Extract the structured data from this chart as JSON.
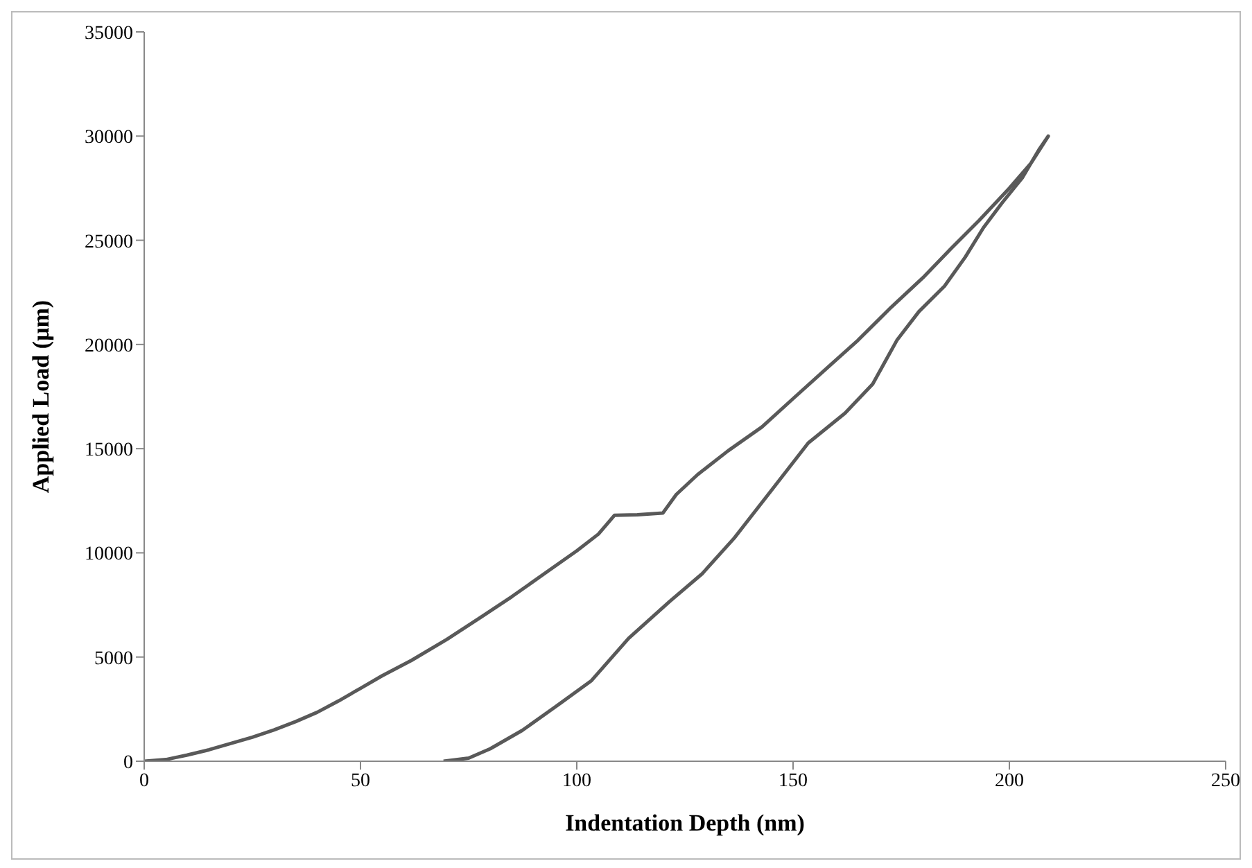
{
  "chart_data": {
    "type": "line",
    "xlabel": "Indentation Depth (nm)",
    "ylabel": "Applied Load (µm)",
    "xlim": [
      0,
      250
    ],
    "xticks": [
      0,
      50,
      100,
      150,
      200,
      250
    ],
    "ylim": [
      0,
      35000
    ],
    "yticks": [
      0,
      5000,
      10000,
      15000,
      20000,
      25000,
      30000,
      35000
    ],
    "grid": false,
    "legend": false,
    "marker": "none",
    "line_style": "solid",
    "series": [
      {
        "color": "#595959",
        "x": [
          0,
          5,
          10,
          15,
          20,
          25,
          30,
          35,
          40,
          45,
          50,
          55,
          61.8,
          70,
          77.8,
          85,
          93.8,
          100,
          105,
          108.7,
          114,
          119.9,
          123,
          127.9,
          135,
          142.8,
          150,
          157.8,
          165,
          172.7,
          180,
          186.6,
          193,
          200,
          205,
          209,
          207,
          203,
          198.3,
          194,
          189.8,
          185,
          179.1,
          174,
          168.4,
          162,
          153.5,
          145,
          136.4,
          129,
          121.5,
          112,
          103.4,
          95,
          87.4,
          80,
          75,
          69.2
        ],
        "values": [
          0,
          80,
          300,
          550,
          850,
          1150,
          1500,
          1900,
          2350,
          2900,
          3500,
          4100,
          4840,
          5850,
          6910,
          7900,
          9190,
          10100,
          10900,
          11800,
          11830,
          11910,
          12800,
          13750,
          14900,
          16040,
          17400,
          18860,
          20200,
          21790,
          23200,
          24620,
          25950,
          27500,
          28700,
          30000,
          29400,
          28000,
          26790,
          25600,
          24190,
          22800,
          21580,
          20200,
          18100,
          16700,
          15270,
          13000,
          10710,
          9000,
          7670,
          5900,
          3870,
          2600,
          1480,
          600,
          150,
          0
        ]
      }
    ]
  }
}
